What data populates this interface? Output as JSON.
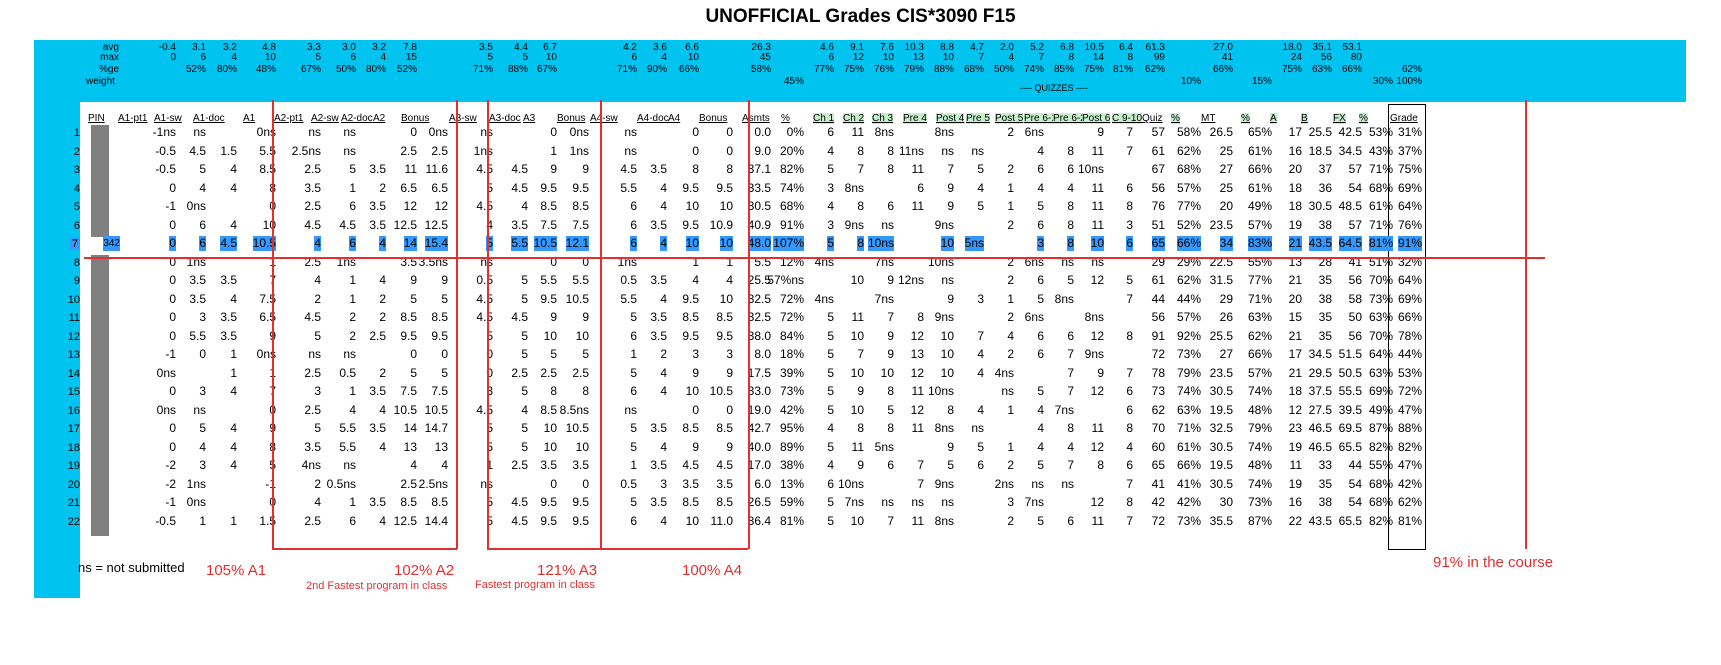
{
  "title": "UNOFFICIAL Grades CIS*3090 F15",
  "stats_labels": [
    "avg",
    "max",
    "%ge",
    "weight"
  ],
  "stats_cols": [
    {
      "col": 2,
      "vals": [
        "-0.4",
        "0",
        "",
        ""
      ]
    },
    {
      "col": 3,
      "vals": [
        "3.1",
        "6",
        "52%",
        ""
      ]
    },
    {
      "col": 4,
      "vals": [
        "3.2",
        "4",
        "80%",
        ""
      ]
    },
    {
      "col": 5,
      "vals": [
        "4.8",
        "10",
        "48%",
        ""
      ]
    },
    {
      "col": 6,
      "vals": [
        "3.3",
        "5",
        "67%",
        ""
      ]
    },
    {
      "col": 7,
      "vals": [
        "3.0",
        "6",
        "50%",
        ""
      ]
    },
    {
      "col": 8,
      "vals": [
        "3.2",
        "4",
        "80%",
        ""
      ]
    },
    {
      "col": 9,
      "vals": [
        "7.8",
        "15",
        "52%",
        ""
      ]
    },
    {
      "col": 11,
      "vals": [
        "3.5",
        "5",
        "71%",
        ""
      ]
    },
    {
      "col": 12,
      "vals": [
        "4.4",
        "5",
        "88%",
        ""
      ]
    },
    {
      "col": 13,
      "vals": [
        "6.7",
        "10",
        "67%",
        ""
      ]
    },
    {
      "col": 15,
      "vals": [
        "4.2",
        "6",
        "71%",
        ""
      ]
    },
    {
      "col": 16,
      "vals": [
        "3.6",
        "4",
        "90%",
        ""
      ]
    },
    {
      "col": 17,
      "vals": [
        "6.6",
        "10",
        "66%",
        ""
      ]
    },
    {
      "col": 19,
      "vals": [
        "26.3",
        "45",
        "58%",
        ""
      ]
    },
    {
      "col": 20,
      "vals": [
        "",
        "",
        "",
        "45%"
      ]
    },
    {
      "col": 21,
      "vals": [
        "4.6",
        "6",
        "77%",
        ""
      ]
    },
    {
      "col": 22,
      "vals": [
        "9.1",
        "12",
        "75%",
        ""
      ]
    },
    {
      "col": 23,
      "vals": [
        "7.6",
        "10",
        "76%",
        ""
      ]
    },
    {
      "col": 24,
      "vals": [
        "10.3",
        "13",
        "79%",
        ""
      ]
    },
    {
      "col": 25,
      "vals": [
        "8.8",
        "10",
        "88%",
        ""
      ]
    },
    {
      "col": 26,
      "vals": [
        "4.7",
        "7",
        "68%",
        ""
      ]
    },
    {
      "col": 27,
      "vals": [
        "2.0",
        "4",
        "50%",
        ""
      ]
    },
    {
      "col": 28,
      "vals": [
        "5.2",
        "7",
        "74%",
        ""
      ]
    },
    {
      "col": 29,
      "vals": [
        "6.8",
        "8",
        "85%",
        ""
      ]
    },
    {
      "col": 30,
      "vals": [
        "10.5",
        "14",
        "75%",
        ""
      ]
    },
    {
      "col": 31,
      "vals": [
        "6.4",
        "8",
        "81%",
        ""
      ]
    },
    {
      "col": 32,
      "vals": [
        "61.3",
        "99",
        "62%",
        ""
      ]
    },
    {
      "col": 33,
      "vals": [
        "",
        "",
        "",
        "10%"
      ]
    },
    {
      "col": 34,
      "vals": [
        "27.0",
        "41",
        "66%",
        ""
      ]
    },
    {
      "col": 35,
      "vals": [
        "",
        "",
        "",
        "15%"
      ]
    },
    {
      "col": 36,
      "vals": [
        "18.0",
        "24",
        "75%",
        ""
      ]
    },
    {
      "col": 37,
      "vals": [
        "35.1",
        "56",
        "63%",
        ""
      ]
    },
    {
      "col": 38,
      "vals": [
        "53.1",
        "80",
        "66%",
        ""
      ]
    },
    {
      "col": 39,
      "vals": [
        "",
        "",
        "",
        "30%"
      ]
    },
    {
      "col": 40,
      "vals": [
        "",
        "",
        "62%",
        "100%"
      ]
    }
  ],
  "quizzes_label": "---- QUIZZES ----",
  "headers": [
    "PIN",
    "A1-pt1",
    "A1-sw",
    "A1-doc",
    "A1",
    "A2-pt1",
    "A2-sw",
    "A2-doc",
    "A2",
    "Bonus",
    "A3-sw",
    "A3-doc",
    "A3",
    "Bonus",
    "A4-sw",
    "A4-doc",
    "A4",
    "Bonus",
    "Asmts",
    "%",
    "Ch 1",
    "Ch 2",
    "Ch 3",
    "Pre 4",
    "Post 4",
    "Pre 5",
    "Post 5",
    "Pre 6-1",
    "Pre 6-2",
    "Post 6",
    "C 9-10",
    "Quiz",
    "%",
    "MT",
    "%",
    "A",
    "B",
    "FX",
    "%",
    "Grade"
  ],
  "rows": [
    {
      "n": "1",
      "c": [
        "",
        "-1ns",
        "ns",
        "",
        "0ns",
        "ns",
        "ns",
        "",
        "0",
        "0ns",
        "ns",
        "",
        "0",
        "0ns",
        "ns",
        "",
        "0",
        "0",
        "0.0",
        "0%",
        "6",
        "11",
        "8ns",
        "",
        "8ns",
        "",
        "2",
        "6ns",
        "",
        "9",
        "7",
        "57",
        "58%",
        "26.5",
        "65%",
        "17",
        "25.5",
        "42.5",
        "53%",
        "31%"
      ]
    },
    {
      "n": "2",
      "c": [
        "",
        "-0.5",
        "4.5",
        "1.5",
        "5.5",
        "2.5ns",
        "ns",
        "",
        "2.5",
        "2.5",
        "1ns",
        "",
        "1",
        "1ns",
        "ns",
        "",
        "0",
        "0",
        "9.0",
        "20%",
        "4",
        "8",
        "8",
        "11ns",
        "ns",
        "ns",
        "",
        "4",
        "8",
        "11",
        "7",
        "61",
        "62%",
        "25",
        "61%",
        "16",
        "18.5",
        "34.5",
        "43%",
        "37%"
      ]
    },
    {
      "n": "3",
      "c": [
        "",
        "-0.5",
        "5",
        "4",
        "8.5",
        "2.5",
        "5",
        "3.5",
        "11",
        "11.6",
        "4.5",
        "4.5",
        "9",
        "9",
        "4.5",
        "3.5",
        "8",
        "8",
        "37.1",
        "82%",
        "5",
        "7",
        "8",
        "11",
        "7",
        "5",
        "2",
        "6",
        "6",
        "10ns",
        "",
        "67",
        "68%",
        "27",
        "66%",
        "20",
        "37",
        "57",
        "71%",
        "75%"
      ]
    },
    {
      "n": "4",
      "c": [
        "",
        "0",
        "4",
        "4",
        "8",
        "3.5",
        "1",
        "2",
        "6.5",
        "6.5",
        "5",
        "4.5",
        "9.5",
        "9.5",
        "5.5",
        "4",
        "9.5",
        "9.5",
        "33.5",
        "74%",
        "3",
        "8ns",
        "",
        "6",
        "9",
        "4",
        "1",
        "4",
        "4",
        "11",
        "6",
        "56",
        "57%",
        "25",
        "61%",
        "18",
        "36",
        "54",
        "68%",
        "69%"
      ]
    },
    {
      "n": "5",
      "c": [
        "",
        "-1",
        "0ns",
        "",
        "0",
        "2.5",
        "6",
        "3.5",
        "12",
        "12",
        "4.5",
        "4",
        "8.5",
        "8.5",
        "6",
        "4",
        "10",
        "10",
        "30.5",
        "68%",
        "4",
        "8",
        "6",
        "11",
        "9",
        "5",
        "1",
        "5",
        "8",
        "11",
        "8",
        "76",
        "77%",
        "20",
        "49%",
        "18",
        "30.5",
        "48.5",
        "61%",
        "64%"
      ]
    },
    {
      "n": "6",
      "c": [
        "",
        "0",
        "6",
        "4",
        "10",
        "4.5",
        "4.5",
        "3.5",
        "12.5",
        "12.5",
        "4",
        "3.5",
        "7.5",
        "7.5",
        "6",
        "3.5",
        "9.5",
        "10.9",
        "40.9",
        "91%",
        "3",
        "9ns",
        "ns",
        "",
        "9ns",
        "",
        "2",
        "6",
        "8",
        "11",
        "3",
        "51",
        "52%",
        "23.5",
        "57%",
        "19",
        "38",
        "57",
        "71%",
        "76%"
      ]
    },
    {
      "n": "7",
      "hl": true,
      "c": [
        "342",
        "0",
        "6",
        "4.5",
        "10.5",
        "4",
        "6",
        "4",
        "14",
        "15.4",
        "5",
        "5.5",
        "10.5",
        "12.1",
        "6",
        "4",
        "10",
        "10",
        "48.0",
        "107%",
        "5",
        "8",
        "10ns",
        "",
        "10",
        "5ns",
        "",
        "3",
        "8",
        "10",
        "6",
        "65",
        "66%",
        "34",
        "83%",
        "21",
        "43.5",
        "64.5",
        "81%",
        "91%"
      ]
    },
    {
      "n": "8",
      "c": [
        "",
        "0",
        "1ns",
        "",
        "1",
        "2.5",
        "1ns",
        "",
        "3.5",
        "3.5ns",
        "ns",
        "",
        "0",
        "0",
        "1ns",
        "",
        "1",
        "1",
        "5.5",
        "12%",
        "4ns",
        "",
        "7ns",
        "",
        "10ns",
        "",
        "2",
        "6ns",
        "ns",
        "ns",
        "",
        "29",
        "29%",
        "22.5",
        "55%",
        "13",
        "28",
        "41",
        "51%",
        "32%"
      ]
    },
    {
      "n": "9",
      "c": [
        "",
        "0",
        "3.5",
        "3.5",
        "7",
        "4",
        "1",
        "4",
        "9",
        "9",
        "0.5",
        "5",
        "5.5",
        "5.5",
        "0.5",
        "3.5",
        "4",
        "4",
        "25.5",
        "57%ns",
        "",
        "10",
        "9",
        "12ns",
        "ns",
        "",
        "2",
        "6",
        "5",
        "12",
        "5",
        "61",
        "62%",
        "31.5",
        "77%",
        "21",
        "35",
        "56",
        "70%",
        "64%"
      ]
    },
    {
      "n": "10",
      "c": [
        "",
        "0",
        "3.5",
        "4",
        "7.5",
        "2",
        "1",
        "2",
        "5",
        "5",
        "4.5",
        "5",
        "9.5",
        "10.5",
        "5.5",
        "4",
        "9.5",
        "10",
        "32.5",
        "72%",
        "4ns",
        "",
        "7ns",
        "",
        "9",
        "3",
        "1",
        "5",
        "8ns",
        "",
        "7",
        "44",
        "44%",
        "29",
        "71%",
        "20",
        "38",
        "58",
        "73%",
        "69%"
      ]
    },
    {
      "n": "11",
      "c": [
        "",
        "0",
        "3",
        "3.5",
        "6.5",
        "4.5",
        "2",
        "2",
        "8.5",
        "8.5",
        "4.5",
        "4.5",
        "9",
        "9",
        "5",
        "3.5",
        "8.5",
        "8.5",
        "32.5",
        "72%",
        "5",
        "11",
        "7",
        "8",
        "9ns",
        "",
        "2",
        "6ns",
        "",
        "8ns",
        "",
        "56",
        "57%",
        "26",
        "63%",
        "15",
        "35",
        "50",
        "63%",
        "66%"
      ]
    },
    {
      "n": "12",
      "c": [
        "",
        "0",
        "5.5",
        "3.5",
        "9",
        "5",
        "2",
        "2.5",
        "9.5",
        "9.5",
        "5",
        "5",
        "10",
        "10",
        "6",
        "3.5",
        "9.5",
        "9.5",
        "38.0",
        "84%",
        "5",
        "10",
        "9",
        "12",
        "10",
        "7",
        "4",
        "6",
        "6",
        "12",
        "8",
        "91",
        "92%",
        "25.5",
        "62%",
        "21",
        "35",
        "56",
        "70%",
        "78%"
      ]
    },
    {
      "n": "13",
      "c": [
        "",
        "-1",
        "0",
        "1",
        "0ns",
        "ns",
        "ns",
        "",
        "0",
        "0",
        "0",
        "5",
        "5",
        "5",
        "1",
        "2",
        "3",
        "3",
        "8.0",
        "18%",
        "5",
        "7",
        "9",
        "13",
        "10",
        "4",
        "2",
        "6",
        "7",
        "9ns",
        "",
        "72",
        "73%",
        "27",
        "66%",
        "17",
        "34.5",
        "51.5",
        "64%",
        "44%"
      ]
    },
    {
      "n": "14",
      "c": [
        "",
        "0ns",
        "",
        "1",
        "1",
        "2.5",
        "0.5",
        "2",
        "5",
        "5",
        "0",
        "2.5",
        "2.5",
        "2.5",
        "5",
        "4",
        "9",
        "9",
        "17.5",
        "39%",
        "5",
        "10",
        "10",
        "12",
        "10",
        "4",
        "4ns",
        "",
        "7",
        "9",
        "7",
        "78",
        "79%",
        "23.5",
        "57%",
        "21",
        "29.5",
        "50.5",
        "63%",
        "53%"
      ]
    },
    {
      "n": "15",
      "c": [
        "",
        "0",
        "3",
        "4",
        "7",
        "3",
        "1",
        "3.5",
        "7.5",
        "7.5",
        "3",
        "5",
        "8",
        "8",
        "6",
        "4",
        "10",
        "10.5",
        "33.0",
        "73%",
        "5",
        "9",
        "8",
        "11",
        "10ns",
        "",
        "ns",
        "5",
        "7",
        "12",
        "6",
        "73",
        "74%",
        "30.5",
        "74%",
        "18",
        "37.5",
        "55.5",
        "69%",
        "72%"
      ]
    },
    {
      "n": "16",
      "c": [
        "",
        "0ns",
        "ns",
        "",
        "0",
        "2.5",
        "4",
        "4",
        "10.5",
        "10.5",
        "4.5",
        "4",
        "8.5",
        "8.5ns",
        "ns",
        "",
        "0",
        "0",
        "19.0",
        "42%",
        "5",
        "10",
        "5",
        "12",
        "8",
        "4",
        "1",
        "4",
        "7ns",
        "",
        "6",
        "62",
        "63%",
        "19.5",
        "48%",
        "12",
        "27.5",
        "39.5",
        "49%",
        "47%"
      ]
    },
    {
      "n": "17",
      "c": [
        "",
        "0",
        "5",
        "4",
        "9",
        "5",
        "5.5",
        "3.5",
        "14",
        "14.7",
        "5",
        "5",
        "10",
        "10.5",
        "5",
        "3.5",
        "8.5",
        "8.5",
        "42.7",
        "95%",
        "4",
        "8",
        "8",
        "11",
        "8ns",
        "ns",
        "",
        "4",
        "8",
        "11",
        "8",
        "70",
        "71%",
        "32.5",
        "79%",
        "23",
        "46.5",
        "69.5",
        "87%",
        "88%"
      ]
    },
    {
      "n": "18",
      "c": [
        "",
        "0",
        "4",
        "4",
        "8",
        "3.5",
        "5.5",
        "4",
        "13",
        "13",
        "5",
        "5",
        "10",
        "10",
        "5",
        "4",
        "9",
        "9",
        "40.0",
        "89%",
        "5",
        "11",
        "5ns",
        "",
        "9",
        "5",
        "1",
        "4",
        "4",
        "12",
        "4",
        "60",
        "61%",
        "30.5",
        "74%",
        "19",
        "46.5",
        "65.5",
        "82%",
        "82%"
      ]
    },
    {
      "n": "19",
      "c": [
        "",
        "-2",
        "3",
        "4",
        "5",
        "4ns",
        "ns",
        "",
        "4",
        "4",
        "1",
        "2.5",
        "3.5",
        "3.5",
        "1",
        "3.5",
        "4.5",
        "4.5",
        "17.0",
        "38%",
        "4",
        "9",
        "6",
        "7",
        "5",
        "6",
        "2",
        "5",
        "7",
        "8",
        "6",
        "65",
        "66%",
        "19.5",
        "48%",
        "11",
        "33",
        "44",
        "55%",
        "47%"
      ]
    },
    {
      "n": "20",
      "c": [
        "",
        "-2",
        "1ns",
        "",
        "-1",
        "2",
        "0.5ns",
        "",
        "2.5",
        "2.5ns",
        "ns",
        "",
        "0",
        "0",
        "0.5",
        "3",
        "3.5",
        "3.5",
        "6.0",
        "13%",
        "6",
        "10ns",
        "",
        "7",
        "9ns",
        "",
        "2ns",
        "ns",
        "ns",
        "",
        "7",
        "41",
        "41%",
        "30.5",
        "74%",
        "19",
        "35",
        "54",
        "68%",
        "42%"
      ]
    },
    {
      "n": "21",
      "c": [
        "",
        "-1",
        "0ns",
        "",
        "0",
        "4",
        "1",
        "3.5",
        "8.5",
        "8.5",
        "5",
        "4.5",
        "9.5",
        "9.5",
        "5",
        "3.5",
        "8.5",
        "8.5",
        "26.5",
        "59%",
        "5",
        "7ns",
        "ns",
        "ns",
        "ns",
        "",
        "3",
        "7ns",
        "",
        "12",
        "8",
        "42",
        "42%",
        "30",
        "73%",
        "16",
        "38",
        "54",
        "68%",
        "62%"
      ]
    },
    {
      "n": "22",
      "c": [
        "",
        "-0.5",
        "1",
        "1",
        "1.5",
        "2.5",
        "6",
        "4",
        "12.5",
        "14.4",
        "5",
        "4.5",
        "9.5",
        "9.5",
        "6",
        "4",
        "10",
        "11.0",
        "36.4",
        "81%",
        "5",
        "10",
        "7",
        "11",
        "8ns",
        "",
        "2",
        "5",
        "6",
        "11",
        "7",
        "72",
        "73%",
        "35.5",
        "87%",
        "22",
        "43.5",
        "65.5",
        "82%",
        "81%"
      ]
    }
  ],
  "annotations": {
    "ns_legend": "ns = not submitted",
    "a1": "105% A1",
    "a2": "102% A2",
    "a2_note": "2nd Fastest program in class",
    "a3": "121% A3",
    "a3_note": "Fastest program in class",
    "a4": "100% A4",
    "course": "91% in the course"
  },
  "colors": {
    "header_band": "#00C3F0",
    "highlight": "#3399FF",
    "quiz_header": "#C6EFCE",
    "annotation": "#E03030",
    "pin_block": "#808080"
  }
}
